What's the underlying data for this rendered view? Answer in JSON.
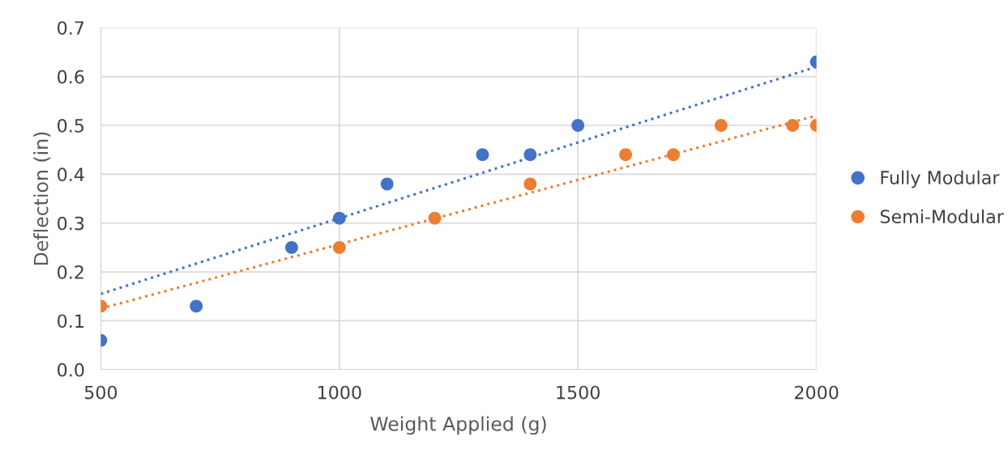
{
  "chart_data": {
    "type": "scatter",
    "xlabel": "Weight Applied (g)",
    "ylabel": "Deflection (in)",
    "xlim": [
      500,
      2000
    ],
    "xticks": [
      500,
      1000,
      1500,
      2000
    ],
    "ylim": [
      0,
      0.7
    ],
    "yticks": [
      {
        "value": 0,
        "label": "0.0"
      },
      0.1,
      0.2,
      0.3,
      0.4,
      0.5,
      0.6,
      0.7
    ],
    "grid": true,
    "legend": "right",
    "series": [
      {
        "name": "Fully Modular",
        "color": "#4472c4",
        "marker": "circle",
        "x": [
          500,
          700,
          900,
          1000,
          1100,
          1300,
          1400,
          1500,
          2000
        ],
        "values": [
          0.06,
          0.13,
          0.25,
          0.31,
          0.38,
          0.44,
          0.44,
          0.5,
          0.63
        ]
      },
      {
        "name": "Semi-Modular",
        "color": "#ed7d31",
        "marker": "circle",
        "x": [
          500,
          1000,
          1200,
          1400,
          1600,
          1700,
          1800,
          1950,
          2000
        ],
        "values": [
          0.13,
          0.25,
          0.31,
          0.38,
          0.44,
          0.44,
          0.5,
          0.5,
          0.5
        ]
      },
      {
        "type": "line",
        "color": "#4472c4",
        "line_style": "dotted",
        "x": [
          500,
          2000
        ],
        "values": [
          0.155,
          0.62
        ]
      },
      {
        "type": "line",
        "color": "#ed7d31",
        "line_style": "dotted",
        "x": [
          500,
          2000
        ],
        "values": [
          0.125,
          0.52
        ]
      }
    ]
  }
}
